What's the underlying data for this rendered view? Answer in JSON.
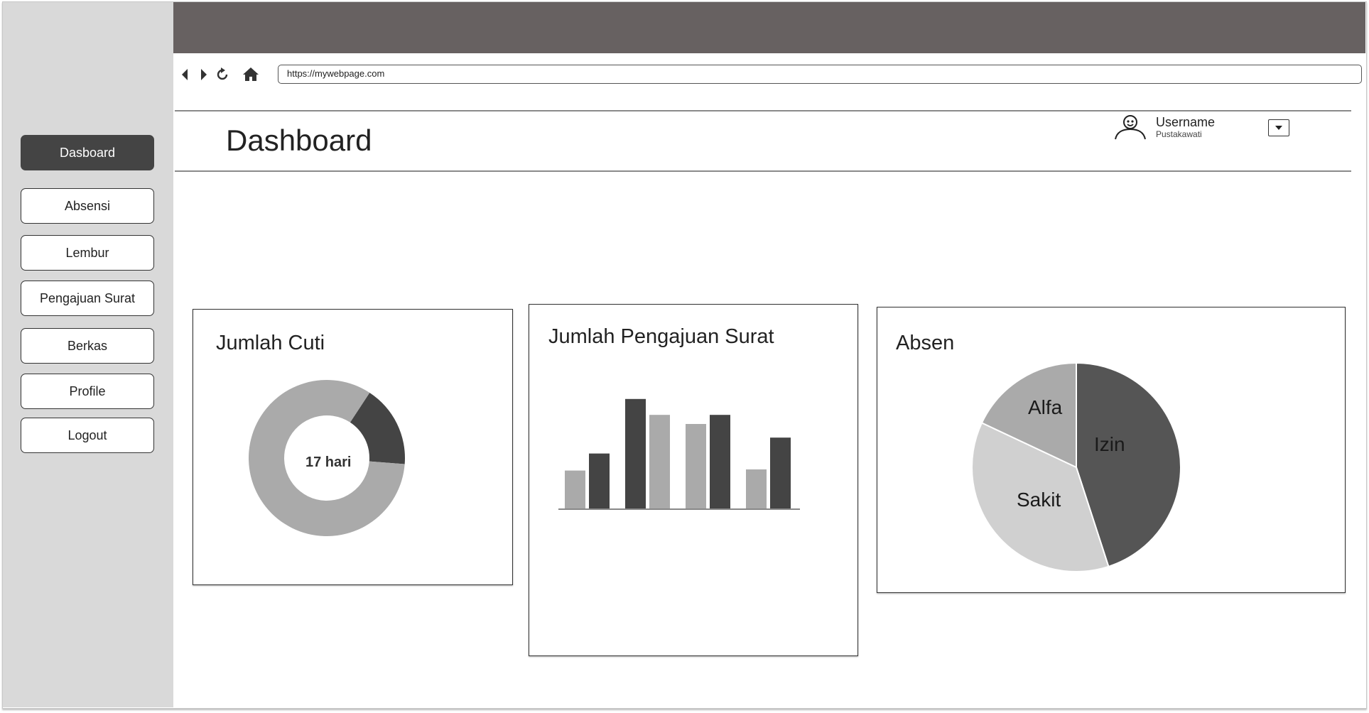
{
  "browser": {
    "url": "https://mywebpage.com"
  },
  "sidebar": {
    "items": [
      {
        "label": "Dasboard",
        "active": true
      },
      {
        "label": "Absensi"
      },
      {
        "label": "Lembur"
      },
      {
        "label": "Pengajuan Surat"
      },
      {
        "label": "Berkas"
      },
      {
        "label": "Profile"
      },
      {
        "label": "Logout"
      }
    ]
  },
  "header": {
    "title": "Dashboard",
    "username": "Username",
    "role": "Pustakawati"
  },
  "cards": {
    "cuti": {
      "title": "Jumlah Cuti",
      "center_label": "17 hari"
    },
    "surat": {
      "title": "Jumlah Pengajuan Surat"
    },
    "absen": {
      "title": "Absen"
    }
  },
  "colors": {
    "topbar": "#676161",
    "sidebar": "#d9d9d9",
    "dark": "#444444",
    "light": "#aaaaaa"
  },
  "chart_data": [
    {
      "type": "pie",
      "variant": "donut",
      "title": "Jumlah Cuti",
      "slices": [
        {
          "value": 17,
          "color": "#444444"
        },
        {
          "value": 83,
          "color": "#aaaaaa"
        }
      ],
      "center_label": "17 hari"
    },
    {
      "type": "bar",
      "title": "Jumlah Pengajuan Surat",
      "categories": [
        "",
        "",
        "",
        ""
      ],
      "series": [
        {
          "values": [
            3.4,
            9.7,
            7.5,
            3.5
          ],
          "color_sequence": [
            "#aaaaaa",
            "#444444",
            "#aaaaaa",
            "#aaaaaa"
          ]
        },
        {
          "values": [
            4.9,
            8.3,
            8.3,
            6.3
          ],
          "color_sequence": [
            "#444444",
            "#aaaaaa",
            "#444444",
            "#444444"
          ]
        }
      ],
      "ylim": [
        0,
        10
      ]
    },
    {
      "type": "pie",
      "title": "Absen",
      "slices": [
        {
          "label": "Izin",
          "value": 45,
          "color": "#555555"
        },
        {
          "label": "Sakit",
          "value": 37,
          "color": "#d0d0d0"
        },
        {
          "label": "Alfa",
          "value": 18,
          "color": "#aaaaaa"
        }
      ]
    }
  ]
}
